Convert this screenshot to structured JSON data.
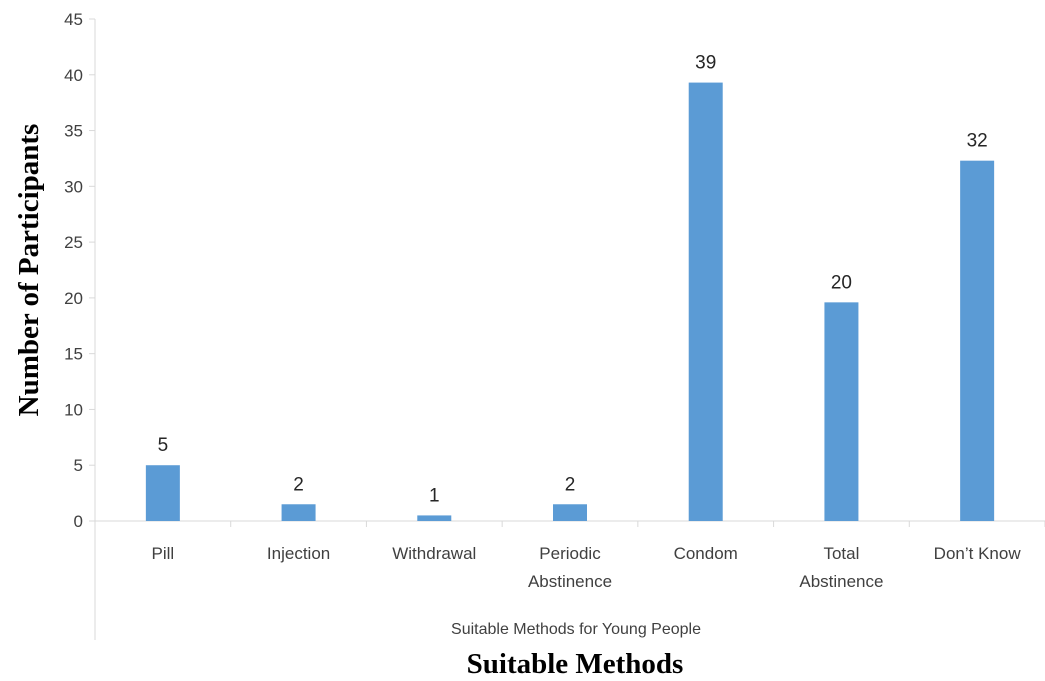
{
  "chart_data": {
    "type": "bar",
    "categories": [
      [
        "Pill"
      ],
      [
        "Injection"
      ],
      [
        "Withdrawal"
      ],
      [
        "Periodic",
        "Abstinence"
      ],
      [
        "Condom"
      ],
      [
        "Total",
        "Abstinence"
      ],
      [
        "Don’t Know"
      ]
    ],
    "values": [
      5,
      1.5,
      0.5,
      1.5,
      39.3,
      19.6,
      32.3
    ],
    "data_labels": [
      "5",
      "2",
      "1",
      "2",
      "39",
      "20",
      "32"
    ],
    "ylabel": "Number of Participants",
    "xlabel": "Suitable Methods",
    "xlabel_inner": "Suitable Methods for Young People",
    "ylim": [
      0,
      45
    ],
    "yticks": [
      0,
      5,
      10,
      15,
      20,
      25,
      30,
      35,
      40,
      45
    ],
    "grid": false,
    "legend": "none",
    "bar_color": "#5b9bd5",
    "axis_color": "#d9d9d9"
  }
}
